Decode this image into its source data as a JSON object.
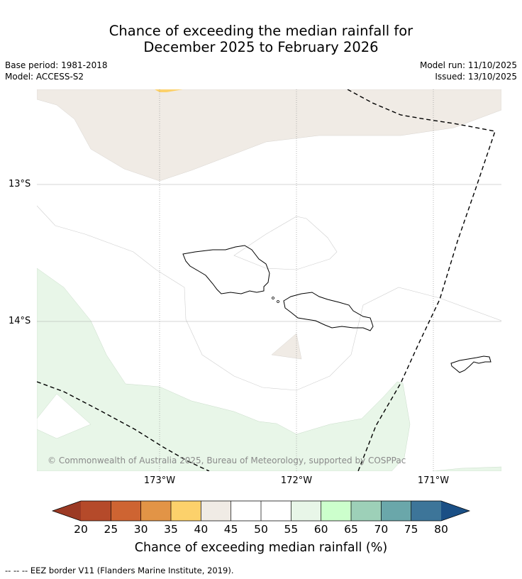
{
  "title_line1": "Chance of exceeding the median rainfall for",
  "title_line2": "December 2025 to February 2026",
  "base_period": "Base period: 1981-2018",
  "model": "Model: ACCESS-S2",
  "model_run": "Model run: 11/10/2025",
  "issued": "Issued: 13/10/2025",
  "lat_labels": [
    "13°S",
    "14°S"
  ],
  "lon_labels": [
    "173°W",
    "172°W",
    "171°W"
  ],
  "copyright": "© Commonwealth of Australia 2025, Bureau of Meteorology, supported by COSPPac",
  "colorbar": {
    "ticks": [
      "20",
      "25",
      "30",
      "35",
      "40",
      "45",
      "50",
      "55",
      "60",
      "65",
      "70",
      "75",
      "80"
    ],
    "colors": [
      "#9c3a24",
      "#b54a2a",
      "#ce6432",
      "#e29446",
      "#fcd16b",
      "#f0ebe5",
      "#ffffff",
      "#ffffff",
      "#e8f6e8",
      "#ccffcc",
      "#9dd0b8",
      "#6aa7aa",
      "#3d7599",
      "#1a4f85"
    ],
    "label": "Chance of exceeding median rainfall (%)"
  },
  "footnote": "--  --  -- EEZ border V11 (Flanders Marine Institute, 2019).",
  "legend_colors": {
    "beige_40_45": "#f0ebe5",
    "light_green_55_60": "#e8f6e8",
    "orange_35_40": "#fcd16b"
  }
}
